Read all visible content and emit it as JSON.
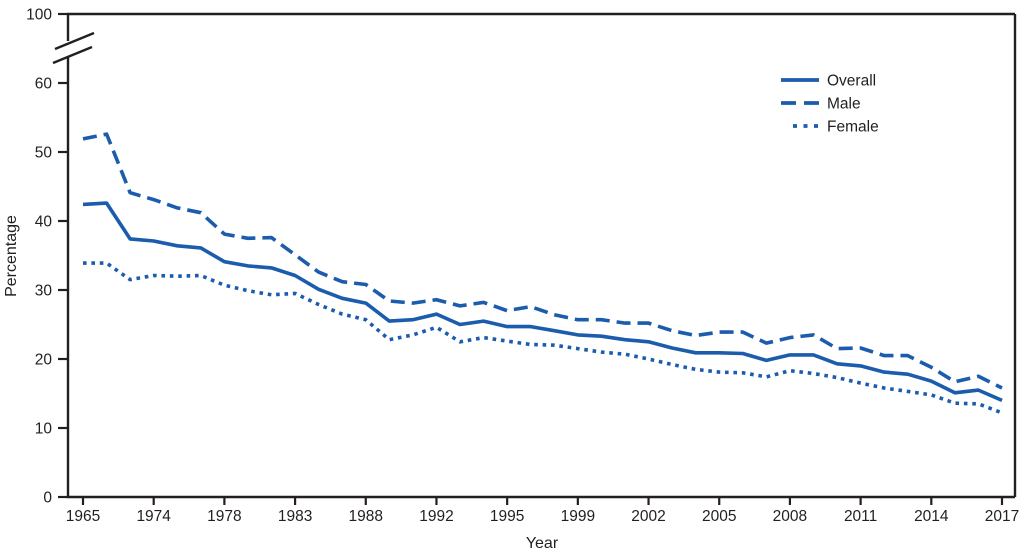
{
  "chart_data": {
    "type": "line",
    "title": "",
    "xlabel": "Year",
    "ylabel": "Percentage",
    "x_scale": "categorical-equal-spacing-per-survey-year",
    "grid": false,
    "legend_position": "top-right",
    "line_color": "#1b5cad",
    "axis_color": "#231f20",
    "y_ticks": [
      0,
      10,
      20,
      30,
      40,
      50,
      60,
      100
    ],
    "y_axis_break_between": [
      60,
      100
    ],
    "ylim": [
      0,
      100
    ],
    "x": [
      1965,
      1966,
      1970,
      1974,
      1976,
      1977,
      1978,
      1979,
      1980,
      1983,
      1985,
      1987,
      1988,
      1990,
      1991,
      1992,
      1993,
      1994,
      1995,
      1997,
      1998,
      1999,
      2000,
      2001,
      2002,
      2003,
      2004,
      2005,
      2006,
      2007,
      2008,
      2009,
      2010,
      2011,
      2012,
      2013,
      2014,
      2015,
      2016,
      2017
    ],
    "x_tick_labels": [
      "1965",
      "1974",
      "1978",
      "1983",
      "1988",
      "1992",
      "1995",
      "1999",
      "2002",
      "2005",
      "2008",
      "2011",
      "2014",
      "2017"
    ],
    "series": [
      {
        "name": "Overall",
        "line_style": "solid",
        "values": [
          42.4,
          42.6,
          37.4,
          37.1,
          36.4,
          36.1,
          34.1,
          33.5,
          33.2,
          32.1,
          30.1,
          28.8,
          28.1,
          25.5,
          25.7,
          26.5,
          25.0,
          25.5,
          24.7,
          24.7,
          24.1,
          23.5,
          23.3,
          22.8,
          22.5,
          21.6,
          20.9,
          20.9,
          20.8,
          19.8,
          20.6,
          20.6,
          19.3,
          19.0,
          18.1,
          17.8,
          16.8,
          15.1,
          15.5,
          14.0
        ]
      },
      {
        "name": "Male",
        "line_style": "dashed",
        "values": [
          51.9,
          52.6,
          44.1,
          43.1,
          41.9,
          41.2,
          38.1,
          37.5,
          37.6,
          35.1,
          32.6,
          31.2,
          30.8,
          28.4,
          28.1,
          28.6,
          27.7,
          28.2,
          27.0,
          27.6,
          26.4,
          25.7,
          25.7,
          25.2,
          25.2,
          24.1,
          23.4,
          23.9,
          23.9,
          22.3,
          23.1,
          23.5,
          21.5,
          21.6,
          20.5,
          20.5,
          18.8,
          16.7,
          17.5,
          15.8
        ]
      },
      {
        "name": "Female",
        "line_style": "dotted",
        "values": [
          33.9,
          33.9,
          31.5,
          32.1,
          32.0,
          32.1,
          30.7,
          29.9,
          29.3,
          29.5,
          27.9,
          26.5,
          25.7,
          22.8,
          23.5,
          24.6,
          22.5,
          23.1,
          22.6,
          22.1,
          22.0,
          21.5,
          21.0,
          20.7,
          20.0,
          19.2,
          18.5,
          18.1,
          18.0,
          17.4,
          18.3,
          17.9,
          17.3,
          16.5,
          15.8,
          15.3,
          14.8,
          13.6,
          13.5,
          12.2
        ]
      }
    ]
  }
}
